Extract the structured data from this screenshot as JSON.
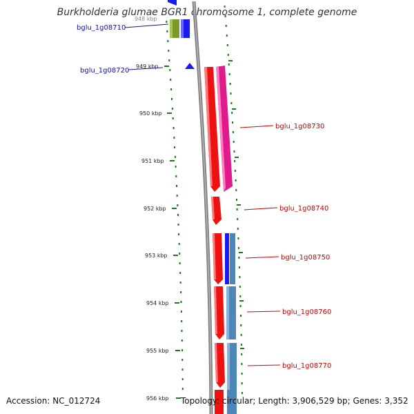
{
  "title": "Burkholderia glumae BGR1 chromosome 1, complete genome",
  "accession_text": "Accession: NC_012724",
  "topology_text": "Topology: circular; Length: 3,906,529 bp; Genes: 3,352",
  "colors": {
    "backbone": "#808080",
    "tick": "#1a7a1a",
    "reverse_label": "#1010b0",
    "forward_label": "#cc0000",
    "red": "#ee1111",
    "magenta": "#e01a8a",
    "steel": "#4f86b8",
    "blue": "#1a1aee",
    "olive": "#7a9a2a"
  },
  "scale": {
    "ticks": [
      {
        "label": "949 kbp"
      },
      {
        "label": "950 kbp"
      },
      {
        "label": "951 kbp"
      },
      {
        "label": "952 kbp"
      },
      {
        "label": "953 kbp"
      },
      {
        "label": "954 kbp"
      },
      {
        "label": "955 kbp"
      },
      {
        "label": "956 kbp"
      }
    ],
    "partial_label": "948 kbp"
  },
  "genes": [
    {
      "label": "bglu_1g08710",
      "strand": "reverse"
    },
    {
      "label": "bglu_1g08720",
      "strand": "reverse"
    },
    {
      "label": "bglu_1g08730",
      "strand": "forward"
    },
    {
      "label": "bglu_1g08740",
      "strand": "forward"
    },
    {
      "label": "bglu_1g08750",
      "strand": "forward"
    },
    {
      "label": "bglu_1g08760",
      "strand": "forward"
    },
    {
      "label": "bglu_1g08770",
      "strand": "forward"
    }
  ]
}
